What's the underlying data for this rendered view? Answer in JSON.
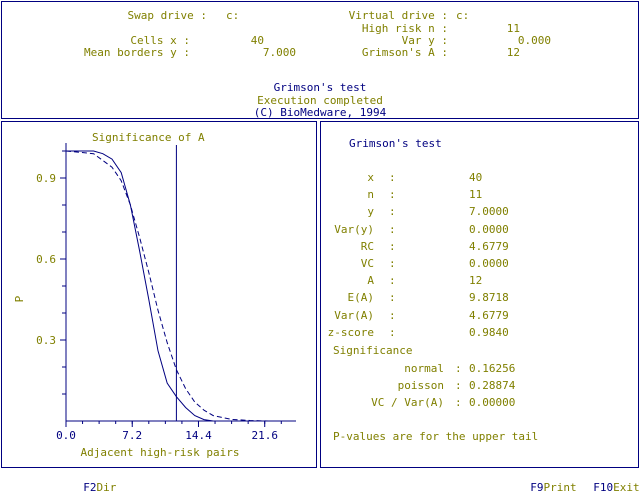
{
  "top": {
    "swap_drive_label": "Swap drive :",
    "swap_drive_value": "c:",
    "virtual_drive_label": "Virtual drive :",
    "virtual_drive_value": "c:",
    "high_risk_label": "High risk n :",
    "high_risk_value": "11",
    "cells_x_label": "Cells x :",
    "cells_x_value": "40",
    "var_y_label": "Var y :",
    "var_y_value": "0.000",
    "mean_borders_label": "Mean borders y :",
    "mean_borders_value": "7.000",
    "grimsons_a_label": "Grimson's A :",
    "grimsons_a_value": "12",
    "test_title": "Grimson's test",
    "status": "Execution completed",
    "copyright": "(C) BioMedware, 1994"
  },
  "left_panel": {
    "title": "Significance of A",
    "y_axis_label": "P",
    "x_axis_label": "Adjacent high-risk pairs"
  },
  "right_panel": {
    "title": "Grimson's test",
    "stats": [
      {
        "label": "x",
        "value": "40"
      },
      {
        "label": "n",
        "value": "11"
      },
      {
        "label": "y",
        "value": "7.0000"
      },
      {
        "label": "Var(y)",
        "value": "0.0000"
      },
      {
        "label": "RC",
        "value": "4.6779"
      },
      {
        "label": "VC",
        "value": "0.0000"
      },
      {
        "label": "A",
        "value": "12"
      },
      {
        "label": "E(A)",
        "value": "9.8718"
      },
      {
        "label": "Var(A)",
        "value": "4.6779"
      },
      {
        "label": "z-score",
        "value": "0.9840"
      }
    ],
    "significance_label": "Significance",
    "sig": [
      {
        "label": "normal",
        "value": "0.16256"
      },
      {
        "label": "poisson",
        "value": "0.28874"
      },
      {
        "label": "VC / Var(A)",
        "value": "0.00000"
      }
    ],
    "note": "P-values are for the upper tail"
  },
  "footer": {
    "f2_key": "F2",
    "f2_label": "Dir",
    "f9_key": "F9",
    "f9_label": "Print",
    "f10_key": "F10",
    "f10_label": "Exit"
  },
  "colors": {
    "frame": "#000080",
    "text": "#808000",
    "highlight": "#000080"
  },
  "chart_data": {
    "type": "line",
    "title": "Significance of A",
    "xlabel": "Adjacent high-risk pairs",
    "ylabel": "P",
    "xlim": [
      0,
      25
    ],
    "ylim": [
      0,
      1.0
    ],
    "xticks": [
      0.0,
      7.2,
      14.4,
      21.6
    ],
    "xtick_labels": [
      "0.0",
      "7.2",
      "14.4",
      "21.6"
    ],
    "yticks": [
      0.3,
      0.6,
      0.9
    ],
    "ytick_labels": [
      "0.3",
      "0.6",
      "0.9"
    ],
    "observed_A": 12,
    "series": [
      {
        "style": "solid",
        "x": [
          0,
          3,
          4,
          5,
          6,
          7,
          8,
          9,
          10,
          11,
          12,
          13,
          14,
          15,
          16
        ],
        "y": [
          1.0,
          1.0,
          0.99,
          0.97,
          0.92,
          0.8,
          0.63,
          0.45,
          0.26,
          0.14,
          0.09,
          0.05,
          0.02,
          0.005,
          0.0
        ]
      },
      {
        "style": "dashed",
        "x": [
          0,
          3,
          5,
          6,
          7,
          8,
          9,
          10,
          11,
          12,
          13,
          14,
          15,
          16,
          18,
          20,
          22
        ],
        "y": [
          1.0,
          0.99,
          0.94,
          0.89,
          0.8,
          0.68,
          0.55,
          0.41,
          0.29,
          0.19,
          0.12,
          0.07,
          0.04,
          0.02,
          0.006,
          0.002,
          0.0
        ]
      }
    ]
  }
}
